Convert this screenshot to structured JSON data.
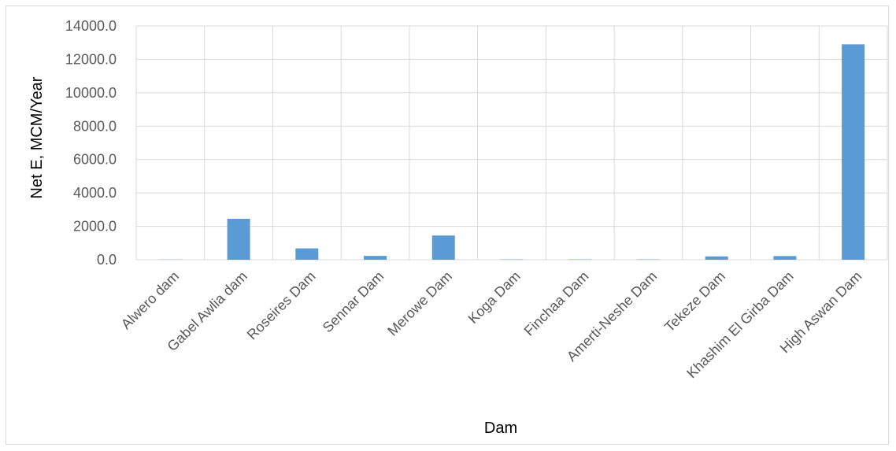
{
  "chart_data": {
    "type": "bar",
    "title": "",
    "xlabel": "Dam",
    "ylabel": "Net E, MCM/Year",
    "categories": [
      "Alwero dam",
      "Gabel Awlia dam",
      "Roseires Dam",
      "Sennar Dam",
      "Merowe Dam",
      "Koga Dam",
      "Finchaa Dam",
      "Amerti-Neshe Dam",
      "Tekeze Dam",
      "Khashim El Girba Dam",
      "High Aswan Dam"
    ],
    "values": [
      10,
      2450,
      680,
      230,
      1450,
      20,
      20,
      20,
      200,
      220,
      12900
    ],
    "ylim": [
      0,
      14000
    ],
    "yticks": [
      "0.0",
      "2000.0",
      "4000.0",
      "6000.0",
      "8000.0",
      "10000.0",
      "12000.0",
      "14000.0"
    ],
    "ytick_values": [
      0,
      2000,
      4000,
      6000,
      8000,
      10000,
      12000,
      14000
    ],
    "grid": "vertical category separators and horizontal gridlines",
    "legend": "none",
    "bar_color": "#5b9bd5",
    "grid_color": "#d9d9d9"
  }
}
